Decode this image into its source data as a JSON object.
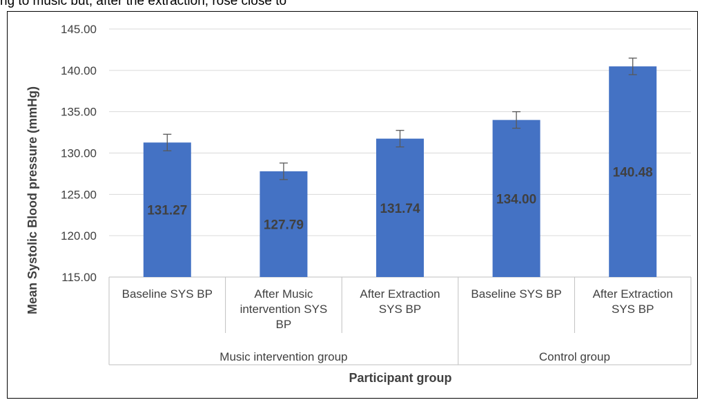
{
  "header_text": "ng to music but, after the extraction, rose close to",
  "chart_data": {
    "type": "bar",
    "title": "",
    "xlabel": "Participant group",
    "ylabel": "Mean Systolic Blood pressure (mmHg)",
    "ylim": [
      115,
      145
    ],
    "yticks": [
      "115.00",
      "120.00",
      "125.00",
      "130.00",
      "135.00",
      "140.00",
      "145.00"
    ],
    "grid": true,
    "bar_color": "#4472C4",
    "categories": [
      {
        "lines": [
          "Baseline SYS BP"
        ],
        "group": 0
      },
      {
        "lines": [
          "After Music",
          "intervention SYS",
          "BP"
        ],
        "group": 0
      },
      {
        "lines": [
          "After Extraction",
          "SYS BP"
        ],
        "group": 0
      },
      {
        "lines": [
          "Baseline SYS BP"
        ],
        "group": 1
      },
      {
        "lines": [
          "After Extraction",
          "SYS BP"
        ],
        "group": 1
      }
    ],
    "groups": [
      "Music intervention group",
      "Control group"
    ],
    "values": [
      131.27,
      127.79,
      131.74,
      134.0,
      140.48
    ],
    "data_labels": [
      "131.27",
      "127.79",
      "131.74",
      "134.00",
      "140.48"
    ],
    "error": [
      1.0,
      1.0,
      1.0,
      1.0,
      1.0
    ]
  }
}
